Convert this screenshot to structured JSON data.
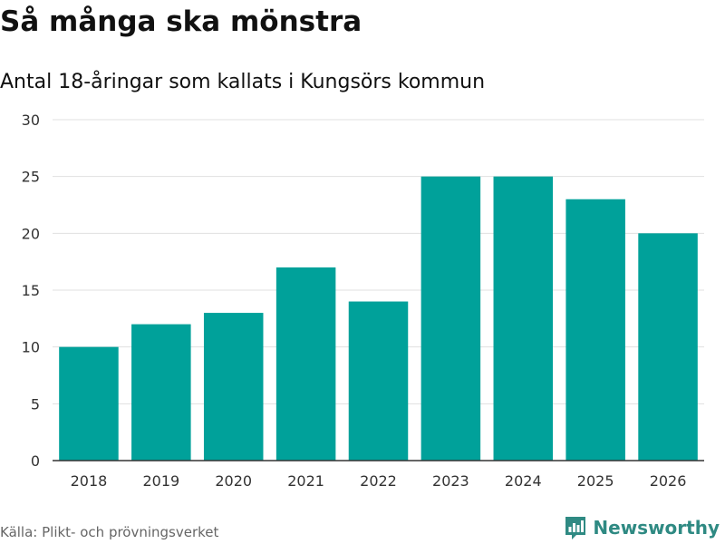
{
  "title": "Så många ska mönstra",
  "subtitle": "Antal 18-åringar som kallats i Kungsörs kommun",
  "source": "Källa: Plikt- och prövningsverket",
  "brand": {
    "name": "Newsworthy",
    "icon": "newsworthy-logo-icon",
    "color": "#2f8a83"
  },
  "colors": {
    "bar": "#00a19a",
    "grid": "#e0e0e0",
    "axis": "#333333",
    "tick_text": "#333333"
  },
  "chart_data": {
    "type": "bar",
    "title": "Så många ska mönstra",
    "subtitle": "Antal 18-åringar som kallats i Kungsörs kommun",
    "xlabel": "",
    "ylabel": "",
    "categories": [
      "2018",
      "2019",
      "2020",
      "2021",
      "2022",
      "2023",
      "2024",
      "2025",
      "2026"
    ],
    "values": [
      10,
      12,
      13,
      17,
      14,
      25,
      25,
      23,
      20
    ],
    "ylim": [
      0,
      30
    ],
    "yticks": [
      0,
      5,
      10,
      15,
      20,
      25,
      30
    ],
    "grid": true,
    "legend": "none"
  }
}
